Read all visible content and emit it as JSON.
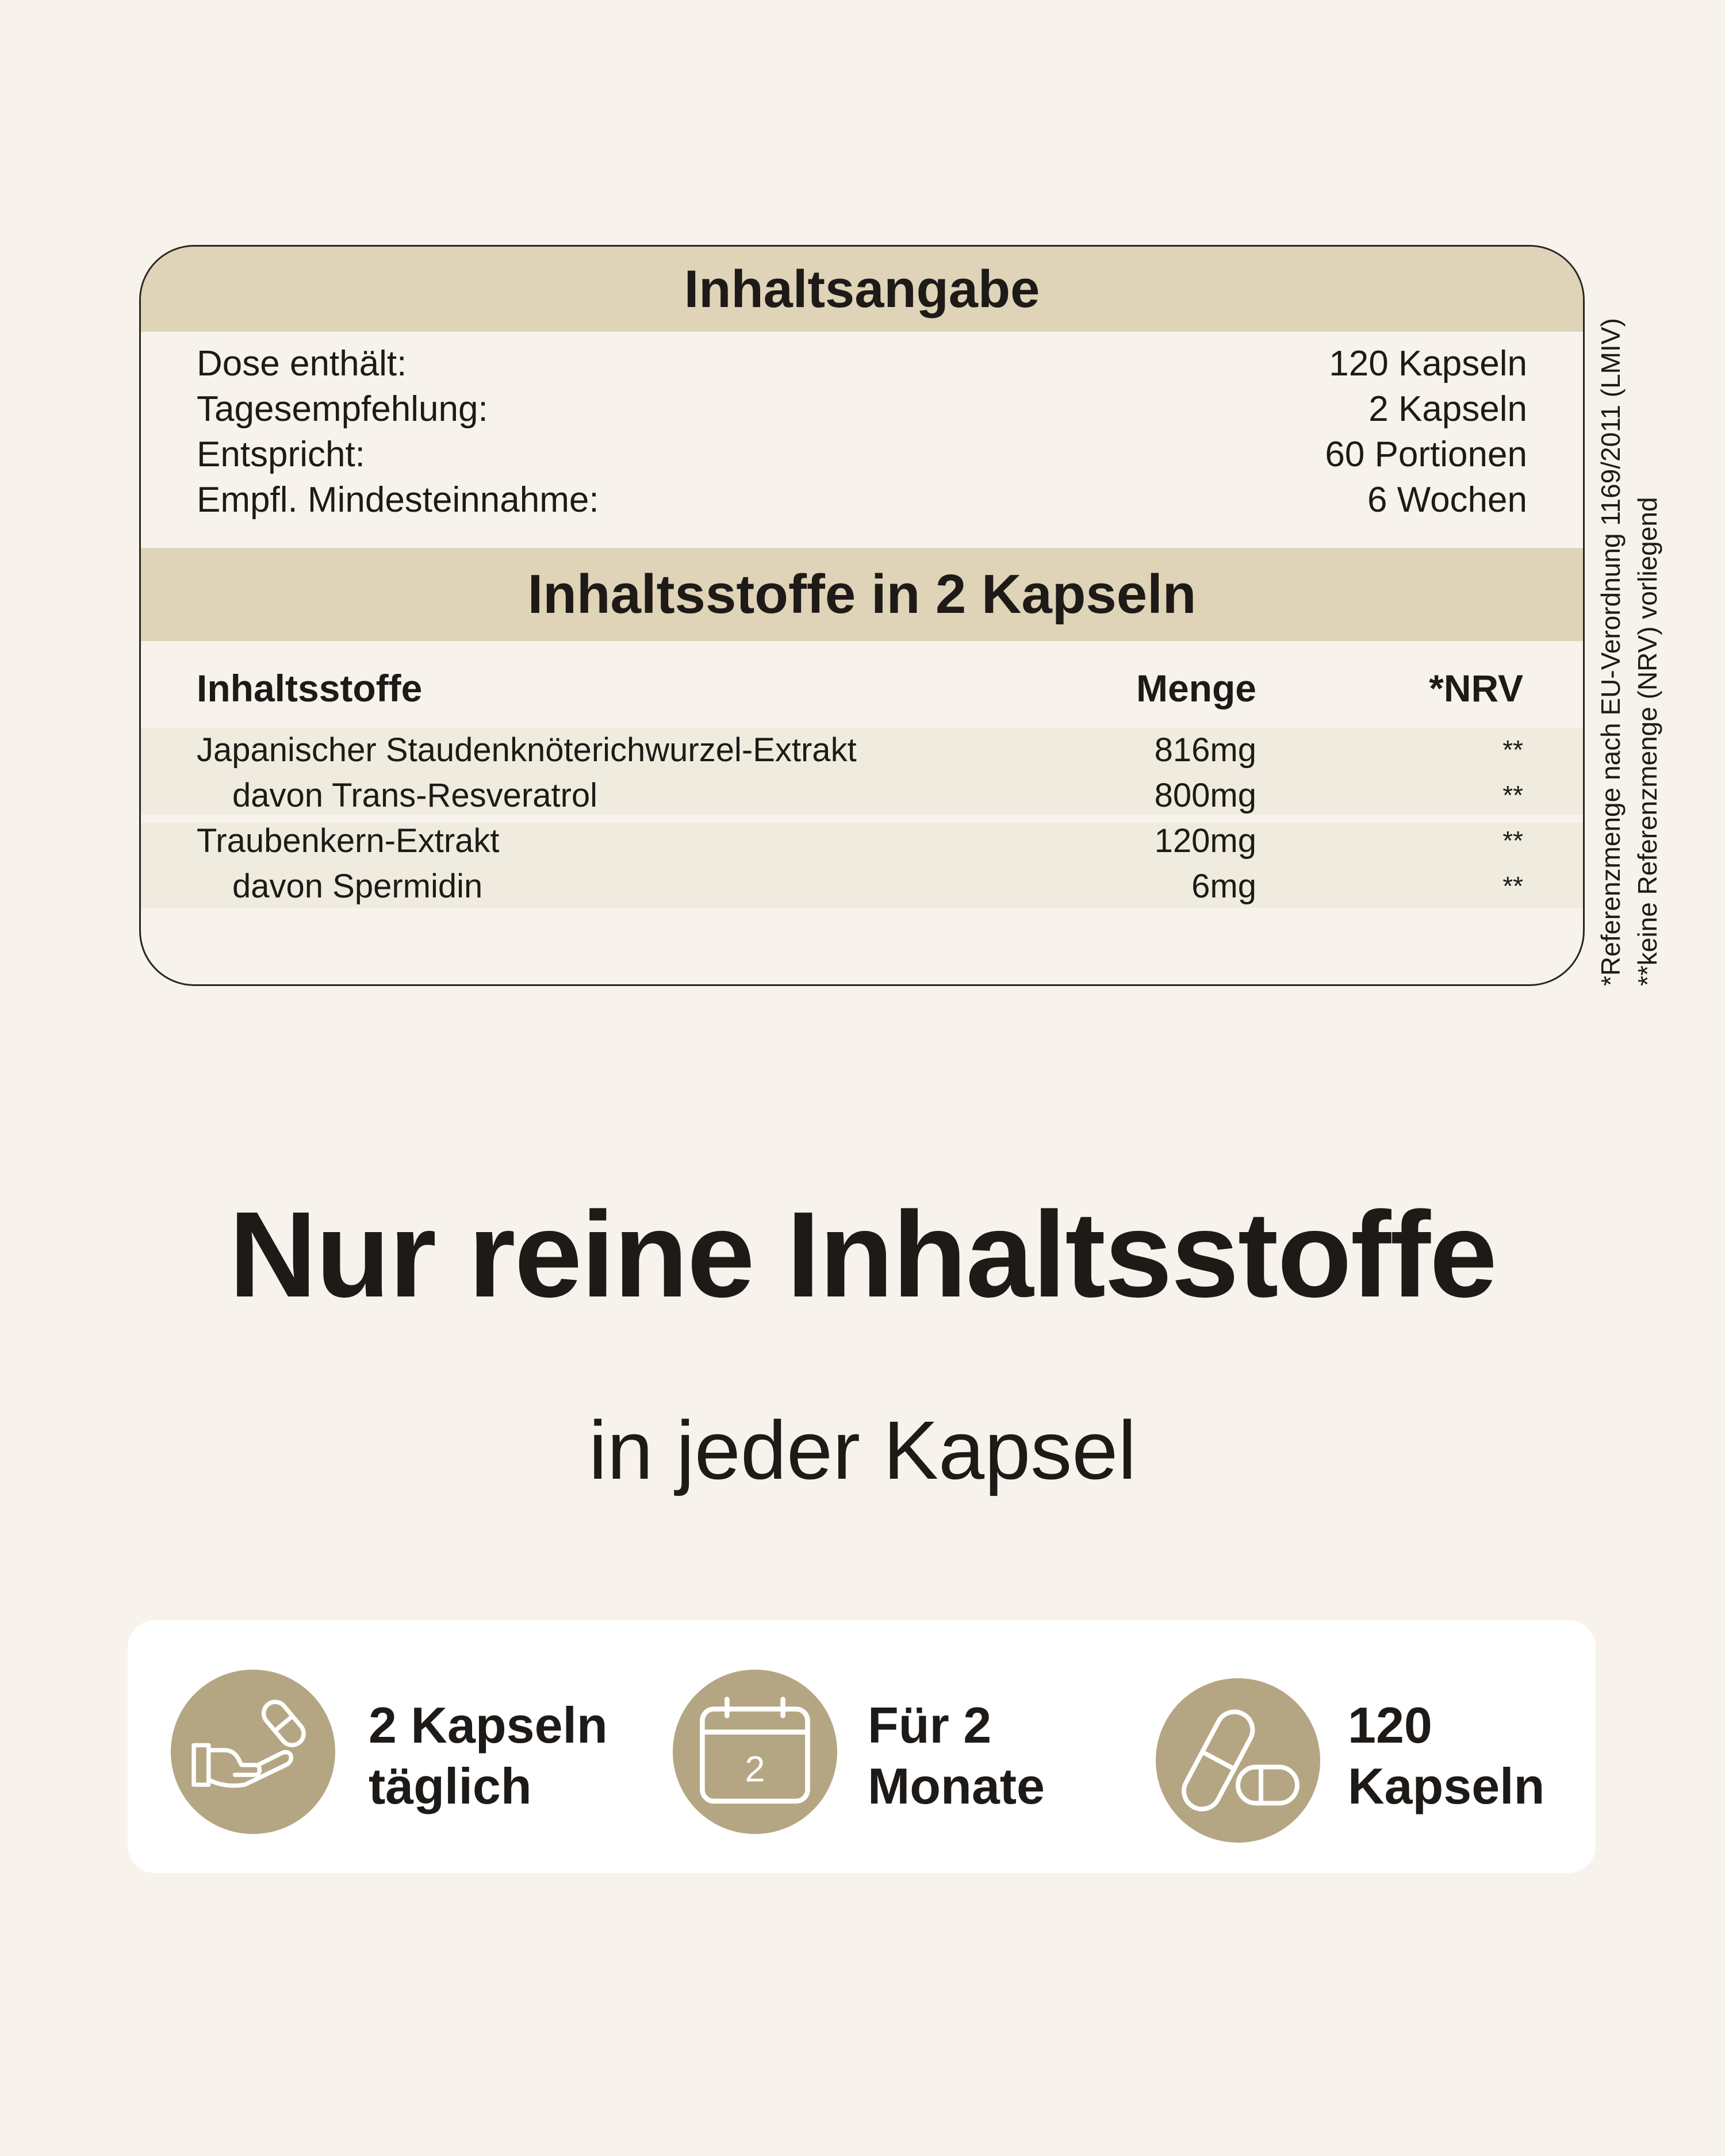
{
  "inhaltsangabe": {
    "title": "Inhaltsangabe",
    "rows": [
      {
        "label": "Dose enthält:",
        "value": "120 Kapseln"
      },
      {
        "label": "Tagesempfehlung:",
        "value": "2 Kapseln"
      },
      {
        "label": "Entspricht:",
        "value": "60 Portionen"
      },
      {
        "label": "Empfl. Mindesteinnahme:",
        "value": "6 Wochen"
      }
    ]
  },
  "inhaltsstoffe": {
    "title": "Inhaltsstoffe in 2 Kapseln",
    "headers": {
      "name": "Inhaltsstoffe",
      "amount": "Menge",
      "nrv": "*NRV"
    },
    "rows": [
      {
        "name": "Japanischer Staudenknöterichwurzel-Extrakt",
        "amount": "816mg",
        "nrv": "**"
      },
      {
        "name": "davon Trans-Resveratrol",
        "amount": "800mg",
        "nrv": "**"
      },
      {
        "name": "Traubenkern-Extrakt",
        "amount": "120mg",
        "nrv": "**"
      },
      {
        "name": "davon Spermidin",
        "amount": "6mg",
        "nrv": "**"
      }
    ]
  },
  "footnotes": {
    "nrv": "*Referenzmenge nach EU-Verordnung 1169/2011 (LMIV)",
    "none": "**keine Referenzmenge (NRV) vorliegend"
  },
  "headline": "Nur reine Inhaltsstoffe",
  "subheadline": "in jeder Kapsel",
  "features": [
    {
      "icon": "hand-capsule-icon",
      "line1": "2 Kapseln",
      "line2": "täglich"
    },
    {
      "icon": "calendar-icon",
      "calendar_number": "2",
      "line1": "Für 2",
      "line2": "Monate"
    },
    {
      "icon": "capsules-icon",
      "line1": "120",
      "line2": "Kapseln"
    }
  ],
  "colors": {
    "background": "#f7f3ec",
    "band": "#dfd3b8",
    "row_shade": "#f0ebdf",
    "icon_circle": "#b5a683"
  }
}
